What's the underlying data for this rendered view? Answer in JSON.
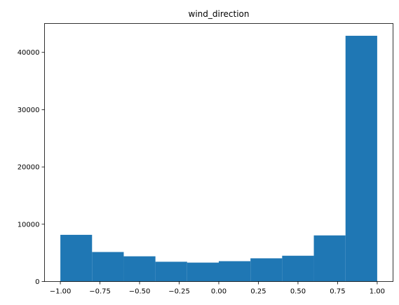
{
  "chart_data": {
    "type": "bar",
    "title": "wind_direction",
    "xlabel": "",
    "ylabel": "",
    "bin_edges": [
      -1.0,
      -0.8,
      -0.6,
      -0.4,
      -0.2,
      0.0,
      0.2,
      0.4,
      0.6,
      0.8,
      1.0
    ],
    "values": [
      8150,
      5150,
      4400,
      3450,
      3300,
      3550,
      4050,
      4500,
      8050,
      42900
    ],
    "xlim": [
      -1.1,
      1.1
    ],
    "ylim": [
      0,
      45045
    ],
    "xticks": [
      -1.0,
      -0.75,
      -0.5,
      -0.25,
      0.0,
      0.25,
      0.5,
      0.75,
      1.0
    ],
    "xtick_labels": [
      "−1.00",
      "−0.75",
      "−0.50",
      "−0.25",
      "0.00",
      "0.25",
      "0.50",
      "0.75",
      "1.00"
    ],
    "yticks": [
      0,
      10000,
      20000,
      30000,
      40000
    ],
    "ytick_labels": [
      "0",
      "10000",
      "20000",
      "30000",
      "40000"
    ],
    "grid": false,
    "bar_color": "#1f77b4"
  }
}
